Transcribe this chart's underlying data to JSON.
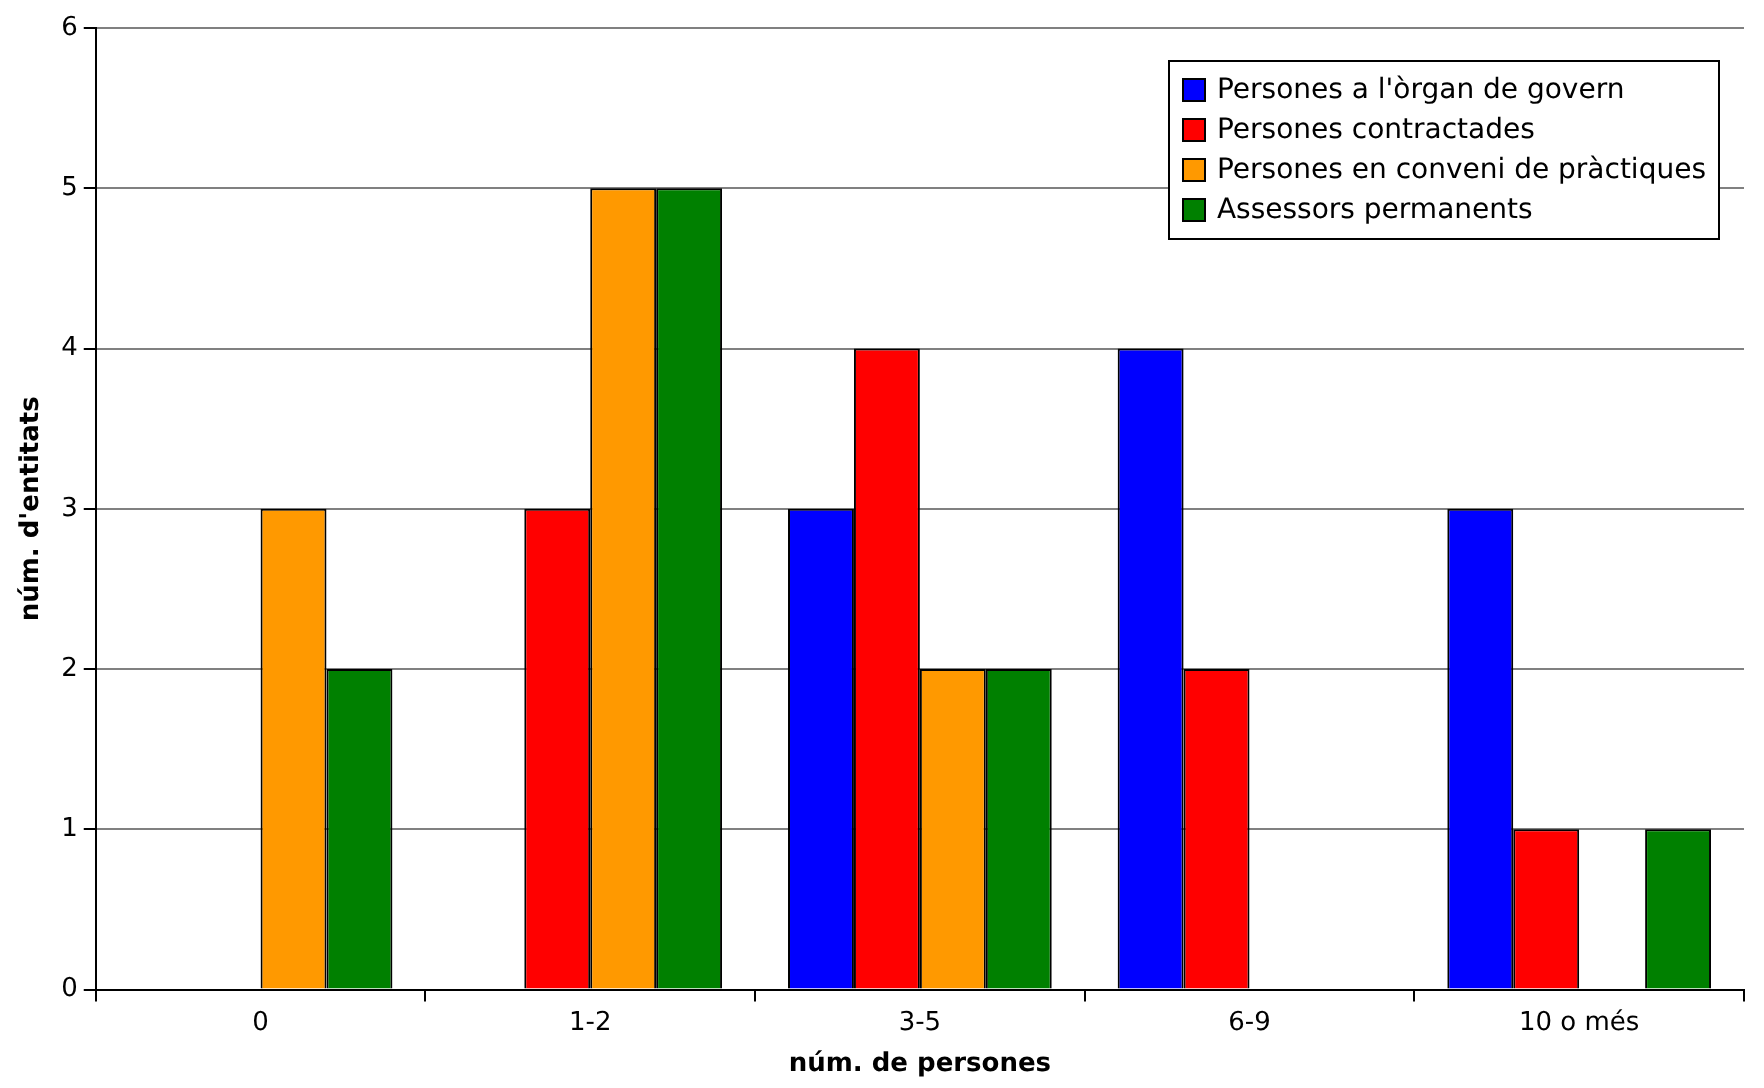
{
  "chart_data": {
    "type": "bar",
    "xlabel": "núm. de persones",
    "ylabel": "núm. d'entitats",
    "categories": [
      "0",
      "1-2",
      "3-5",
      "6-9",
      "10 o més"
    ],
    "series": [
      {
        "name": "Persones a l'òrgan de govern",
        "color": "#0000ff",
        "values": [
          0,
          0,
          3,
          4,
          3
        ]
      },
      {
        "name": "Persones contractades",
        "color": "#ff0000",
        "values": [
          0,
          3,
          4,
          2,
          1
        ]
      },
      {
        "name": "Persones en conveni de pràctiques",
        "color": "#ff9900",
        "values": [
          3,
          5,
          2,
          0,
          0
        ]
      },
      {
        "name": "Assessors permanents",
        "color": "#008000",
        "values": [
          2,
          5,
          2,
          0,
          1
        ]
      }
    ],
    "ylim": [
      0,
      6
    ],
    "yticks": [
      0,
      1,
      2,
      3,
      4,
      5,
      6
    ],
    "grid": "y",
    "legend": "top right"
  }
}
